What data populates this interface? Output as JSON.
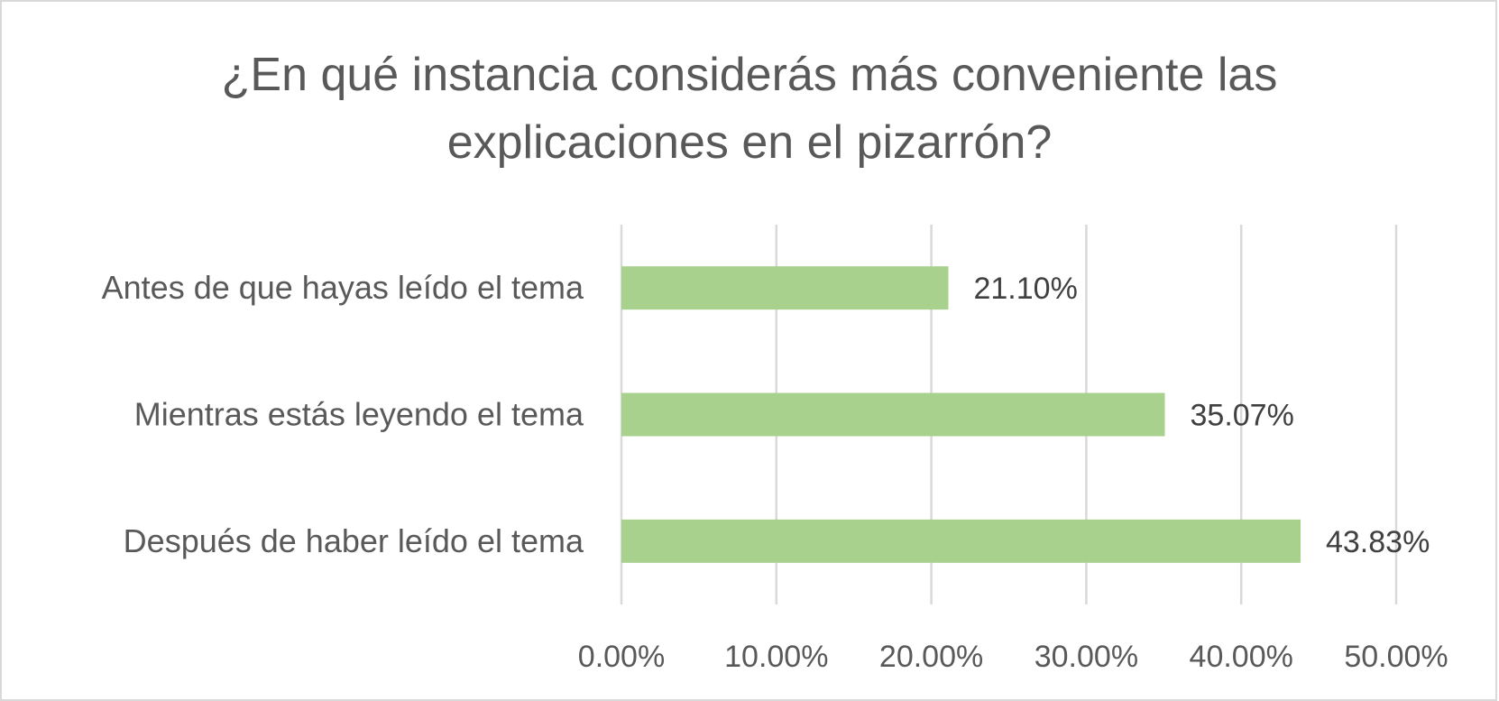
{
  "chart_data": {
    "type": "bar",
    "orientation": "horizontal",
    "title_lines": [
      "¿En qué instancia considerás más conveniente las",
      "explicaciones en el pizarrón?"
    ],
    "categories": [
      "Antes de que hayas leído el tema",
      "Mientras estás leyendo el tema",
      "Después de haber leído el tema"
    ],
    "values": [
      21.1,
      35.07,
      43.83
    ],
    "data_labels": [
      "21.10%",
      "35.07%",
      "43.83%"
    ],
    "xlim": [
      0,
      50
    ],
    "x_ticks": [
      "0.00%",
      "10.00%",
      "20.00%",
      "30.00%",
      "40.00%",
      "50.00%"
    ],
    "grid": true,
    "legend": "none",
    "bar_color": "#a9d18e",
    "grid_color": "#d9d9d9",
    "text_color": "#595959"
  }
}
